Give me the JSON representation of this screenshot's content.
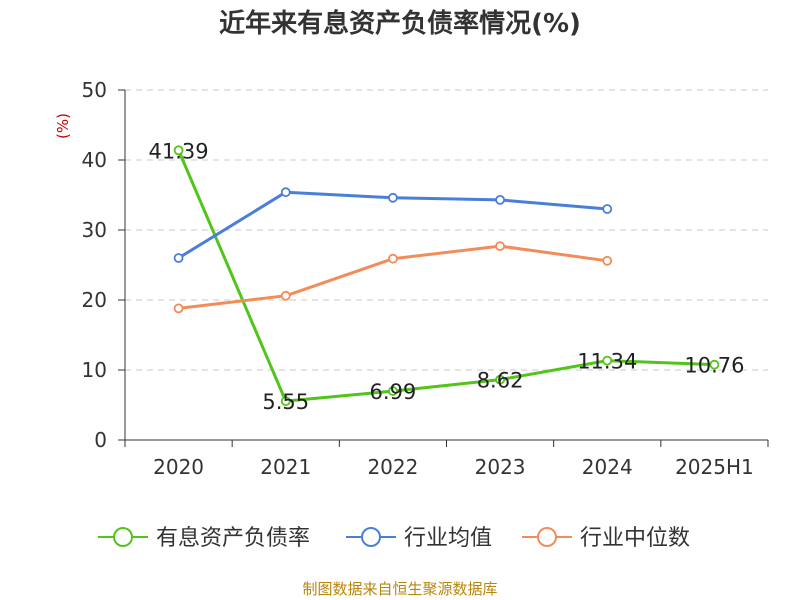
{
  "chart_data": {
    "type": "line",
    "title": "近年来有息资产负债率情况(%)",
    "ylabel": "(%)",
    "xlabel": "",
    "categories": [
      "2020",
      "2021",
      "2022",
      "2023",
      "2024",
      "2025H1"
    ],
    "yticks": [
      0,
      10,
      20,
      30,
      40,
      50
    ],
    "ylim": [
      0,
      50
    ],
    "grid": true,
    "legend_position": "bottom",
    "series": [
      {
        "name": "有息资产负债率",
        "color": "#52c41a",
        "values": [
          41.39,
          5.55,
          6.99,
          8.62,
          11.34,
          10.76
        ],
        "labels": [
          "41.39",
          "5.55",
          "6.99",
          "8.62",
          "11.34",
          "10.76"
        ]
      },
      {
        "name": "行业均值",
        "color": "#4a7fd9",
        "values": [
          26.0,
          35.4,
          34.6,
          34.3,
          33.0,
          null
        ],
        "labels": []
      },
      {
        "name": "行业中位数",
        "color": "#f28c5a",
        "values": [
          18.8,
          20.6,
          25.9,
          27.7,
          25.6,
          null
        ],
        "labels": []
      }
    ]
  },
  "source_note": "制图数据来自恒生聚源数据库"
}
